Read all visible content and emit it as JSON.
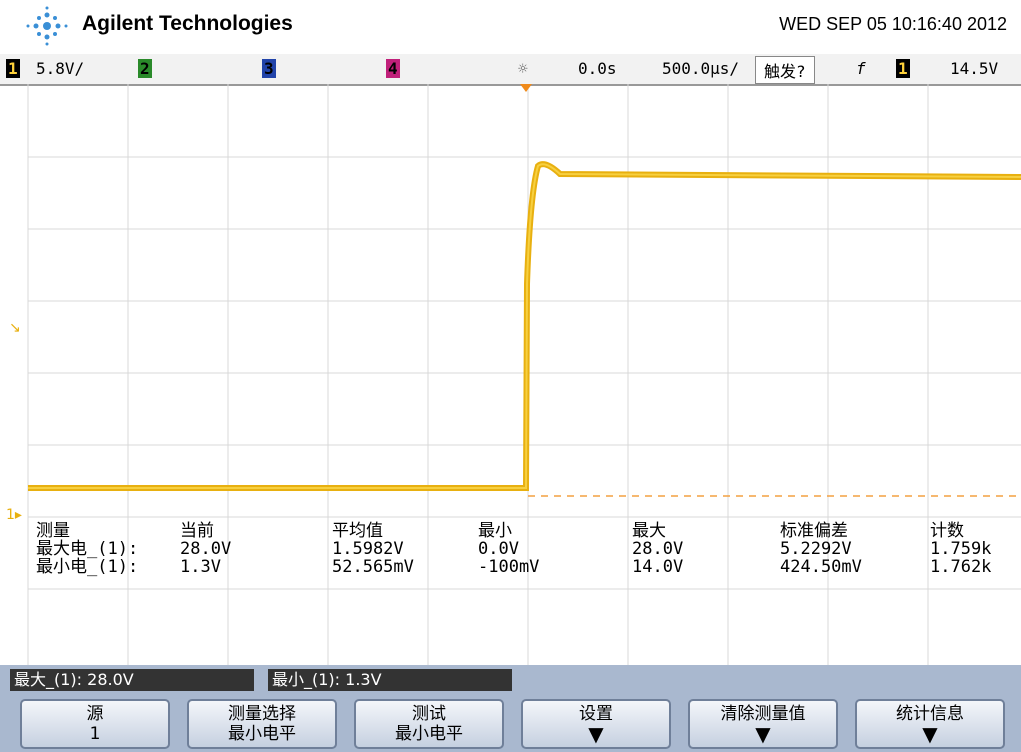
{
  "header": {
    "brand": "Agilent Technologies",
    "datetime": "WED SEP 05 10:16:40 2012"
  },
  "status": {
    "ch1": "1",
    "ch1_scale": "5.8V/",
    "ch2": "2",
    "ch3": "3",
    "ch4": "4",
    "delay": "0.0s",
    "timebase": "500.0µs/",
    "trigger_mode": "触发?",
    "trigger_slope": "f",
    "trigger_source": "1",
    "trigger_level": "14.5V"
  },
  "measurements": {
    "headers": [
      "测量",
      "当前",
      "平均值",
      "最小",
      "最大",
      "标准偏差",
      "计数"
    ],
    "rows": [
      [
        "最大电_(1):",
        "28.0V",
        "1.5982V",
        "0.0V",
        "28.0V",
        "5.2292V",
        "1.759k"
      ],
      [
        "最小电_(1):",
        "1.3V",
        "52.565mV",
        "-100mV",
        "14.0V",
        "424.50mV",
        "1.762k"
      ]
    ]
  },
  "messages": [
    "最大_(1): 28.0V",
    "最小_(1): 1.3V"
  ],
  "softkeys": [
    {
      "label": "源",
      "value": "1"
    },
    {
      "label": "测量选择",
      "value": "最小电平"
    },
    {
      "label": "测试",
      "value": "最小电平"
    },
    {
      "label": "设置"
    },
    {
      "label": "清除测量值"
    },
    {
      "label": "统计信息"
    }
  ]
}
